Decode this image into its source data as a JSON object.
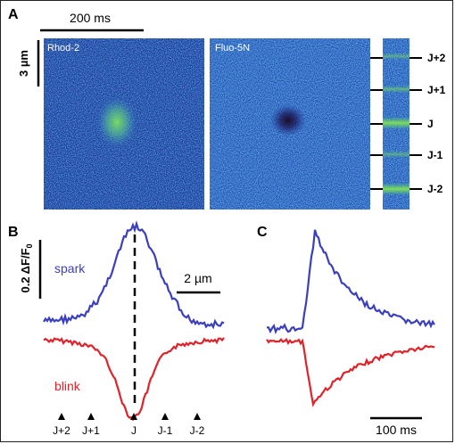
{
  "panels": {
    "a": "A",
    "b": "B",
    "c": "C"
  },
  "panel_a": {
    "time_scale": "200 ms",
    "space_scale": "3 µm",
    "image1_label": "Rhod-2",
    "image2_label": "Fluo-5N",
    "junction_labels": [
      "J+2",
      "J+1",
      "J",
      "J-1",
      "J-2"
    ]
  },
  "panel_b": {
    "amplitude_scale": "0.2 ΔF/F",
    "amplitude_sub": "0",
    "space_scale": "2 µm",
    "spark_label": "spark",
    "blink_label": "blink",
    "arrow_labels": [
      "J+2",
      "J+1",
      "J",
      "J-1",
      "J-2"
    ]
  },
  "panel_c": {
    "time_scale": "100 ms"
  },
  "colors": {
    "spark": "#3a3fc0",
    "blink": "#e0232a",
    "image_base": "#1a3a9a",
    "image_high": "#52e06a"
  }
}
